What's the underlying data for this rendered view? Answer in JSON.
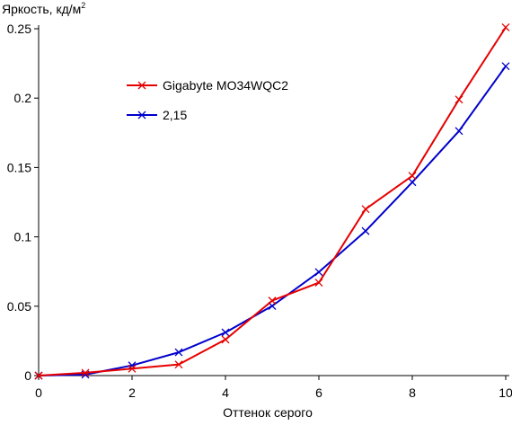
{
  "chart_data": {
    "type": "line",
    "title": "",
    "ylabel": "Яркость, кд/м",
    "ylabel_sup": "2",
    "xlabel": "Оттенок серого",
    "xlim": [
      0,
      10
    ],
    "ylim": [
      0,
      0.25
    ],
    "x_ticks": [
      0,
      2,
      4,
      6,
      8,
      10
    ],
    "x_tick_labels": [
      "0",
      "2",
      "4",
      "6",
      "8",
      "10"
    ],
    "y_ticks": [
      0,
      0.05,
      0.1,
      0.15,
      0.2,
      0.25
    ],
    "y_tick_labels": [
      "0",
      "0.05",
      "0.1",
      "0.15",
      "0.2",
      "0.25"
    ],
    "grid": false,
    "legend_position": "upper-left-inside",
    "x": [
      0,
      1,
      2,
      3,
      4,
      5,
      6,
      7,
      8,
      9,
      10
    ],
    "series": [
      {
        "name": "Gigabyte MO34WQC2",
        "color": "#e60000",
        "marker": "x",
        "values": [
          0,
          0.002,
          0.005,
          0.008,
          0.026,
          0.054,
          0.067,
          0.12,
          0.144,
          0.199,
          0.251
        ]
      },
      {
        "name": "2,15",
        "color": "#0000cc",
        "marker": "x",
        "values": [
          0,
          0.0007,
          0.0073,
          0.0168,
          0.0311,
          0.0502,
          0.0746,
          0.1042,
          0.1394,
          0.1763,
          0.223
        ]
      }
    ]
  }
}
